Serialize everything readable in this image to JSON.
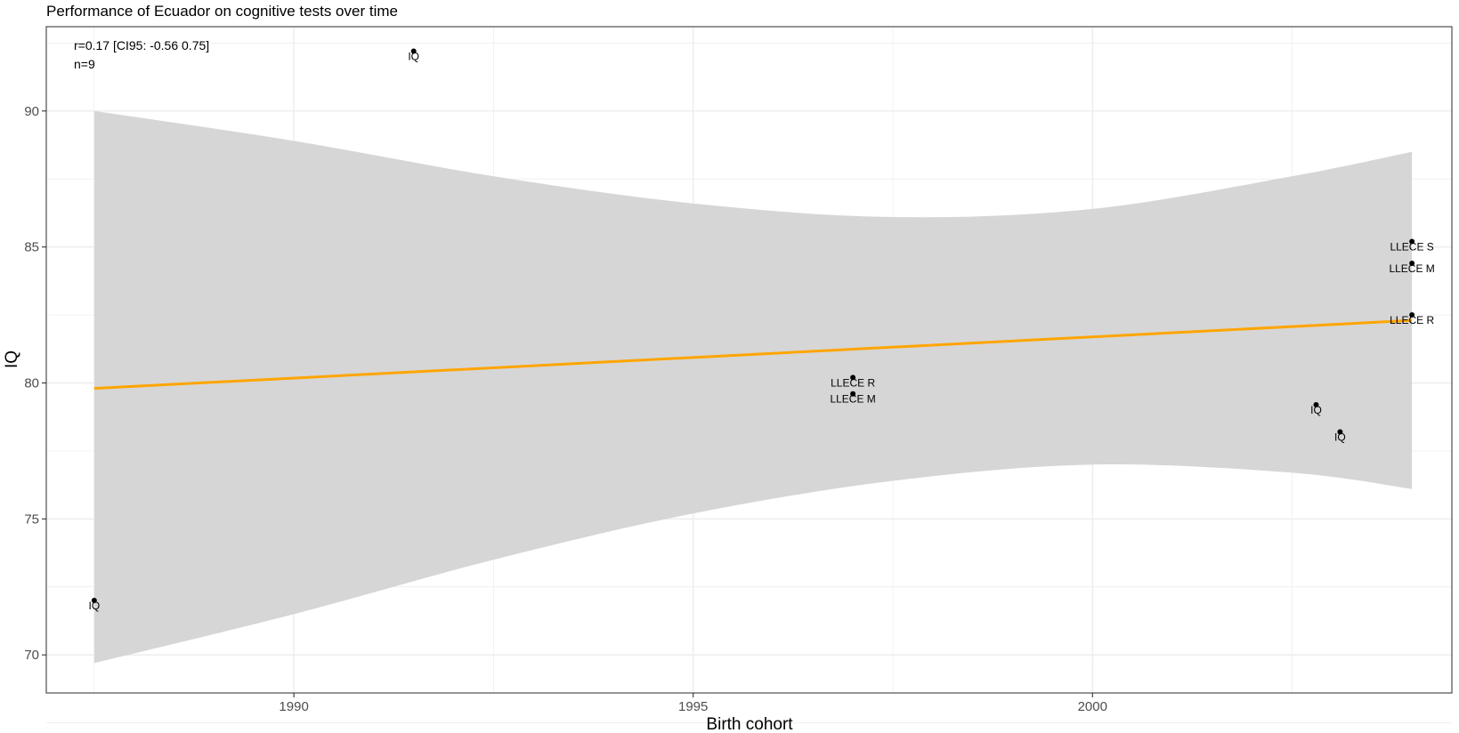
{
  "chart_data": {
    "type": "scatter",
    "title": "Performance of Ecuador on cognitive tests over time",
    "xlabel": "Birth cohort",
    "ylabel": "IQ",
    "xlim": [
      1986.9,
      2004.5
    ],
    "ylim": [
      68.6,
      93.1
    ],
    "x_ticks": [
      1990,
      1995,
      2000
    ],
    "x_tick_labels": [
      "1990",
      "1995",
      "2000"
    ],
    "y_ticks": [
      70,
      75,
      80,
      85,
      90
    ],
    "y_tick_labels": [
      "70",
      "75",
      "80",
      "85",
      "90"
    ],
    "grid": true,
    "annotations": [
      "r=0.17 [CI95: -0.56 0.75]",
      "n=9"
    ],
    "points": [
      {
        "x": 1987.5,
        "y": 72.0,
        "label": "IQ"
      },
      {
        "x": 1991.5,
        "y": 92.2,
        "label": "IQ"
      },
      {
        "x": 1997.0,
        "y": 80.2,
        "label": "LLECE R"
      },
      {
        "x": 1997.0,
        "y": 79.6,
        "label": "LLECE M"
      },
      {
        "x": 2002.8,
        "y": 79.2,
        "label": "IQ"
      },
      {
        "x": 2003.1,
        "y": 78.2,
        "label": "IQ"
      },
      {
        "x": 2004.0,
        "y": 85.2,
        "label": "LLECE S"
      },
      {
        "x": 2004.0,
        "y": 84.4,
        "label": "LLECE M"
      },
      {
        "x": 2004.0,
        "y": 82.5,
        "label": "LLECE R"
      }
    ],
    "fit_line": {
      "x": [
        1987.5,
        2004.0
      ],
      "y": [
        79.8,
        82.3
      ],
      "color": "#FFA500"
    },
    "confidence_band": {
      "color": "#d6d6d6",
      "x": [
        1987.5,
        1990,
        1992.5,
        1995,
        1997.5,
        2000,
        2002.5,
        2004.0
      ],
      "upper": [
        90.0,
        88.9,
        87.6,
        86.6,
        86.1,
        86.4,
        87.6,
        88.5
      ],
      "lower": [
        69.7,
        71.5,
        73.5,
        75.2,
        76.4,
        77.0,
        76.7,
        76.1
      ]
    },
    "colors": {
      "points": "#000000",
      "grid": "#ebebeb",
      "panel_border": "#4d4d4d"
    }
  }
}
